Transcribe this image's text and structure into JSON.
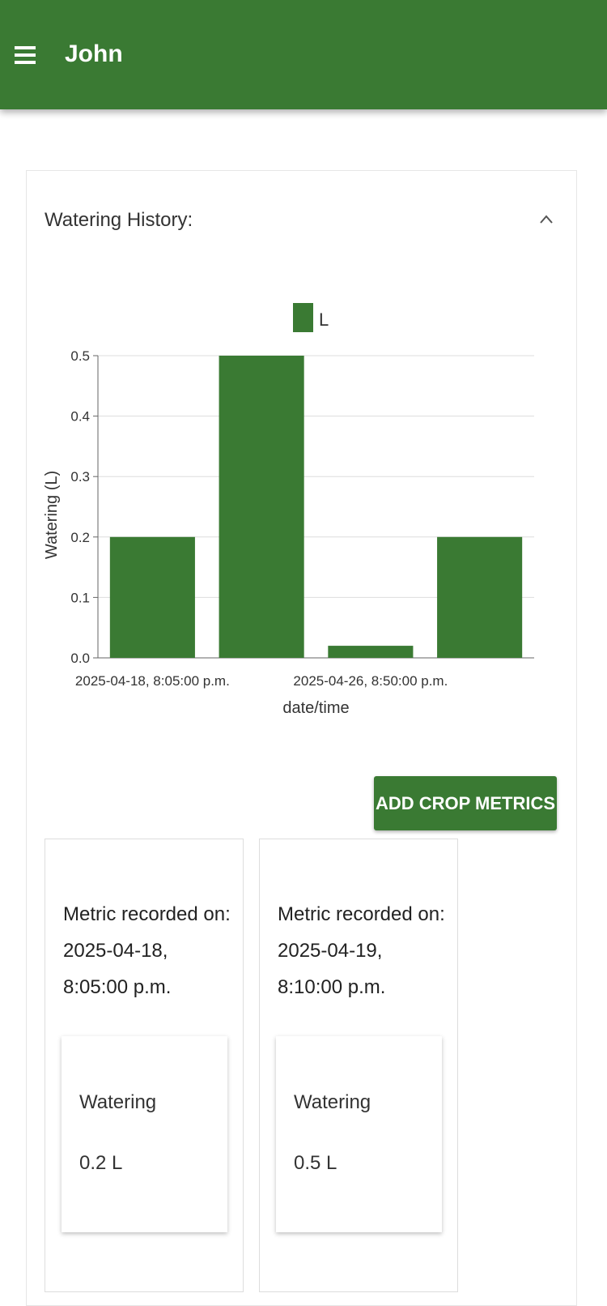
{
  "header": {
    "title": "John"
  },
  "section": {
    "title": "Watering History:"
  },
  "chart_data": {
    "type": "bar",
    "categories": [
      "2025-04-18, 8:05:00 p.m.",
      null,
      "2025-04-26, 8:50:00 p.m.",
      null
    ],
    "series": [
      {
        "name": "L",
        "color": "#3a7a33",
        "values": [
          0.2,
          0.5,
          0.02,
          0.2
        ]
      }
    ],
    "ylim": [
      0,
      0.5
    ],
    "yticks": [
      {
        "value": 0,
        "label": "0.0"
      },
      0.1,
      0.2,
      0.3,
      0.4,
      0.5
    ],
    "ylabel": "Watering (L)",
    "xlabel": "date/time",
    "grid": true,
    "legend": "top"
  },
  "button": {
    "label": "ADD CROP METRICS"
  },
  "metrics": [
    {
      "heading": "Metric recorded on:",
      "date": "2025-04-18,",
      "time": "8:05:00 p.m.",
      "name": "Watering",
      "value": "0.2 L"
    },
    {
      "heading": "Metric recorded on:",
      "date": "2025-04-19,",
      "time": "8:10:00 p.m.",
      "name": "Watering",
      "value": "0.5 L"
    }
  ]
}
